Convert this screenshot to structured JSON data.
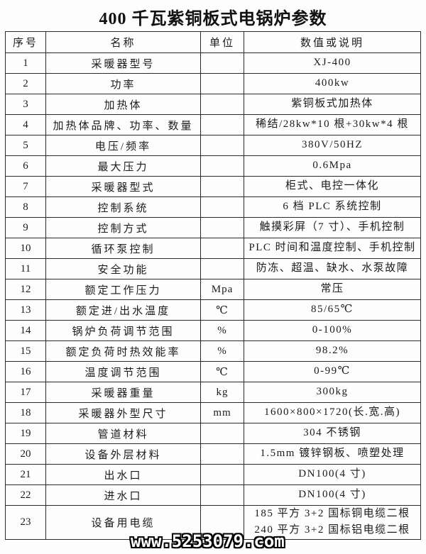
{
  "page": {
    "title": "400 千瓦紫铜板式电锅炉参数",
    "watermark": "www.5253079.com"
  },
  "colors": {
    "background": "#fdfdfd",
    "border": "#2a2a2a",
    "text": "#1b1b1b",
    "watermark_fill": "#ffffff",
    "watermark_outline": "#000000"
  },
  "table": {
    "headers": [
      "序号",
      "名称",
      "单位",
      "数值或说明"
    ],
    "rows": [
      {
        "no": "1",
        "name": "采暖器型号",
        "unit": "",
        "value": "XJ-400"
      },
      {
        "no": "2",
        "name": "功率",
        "unit": "",
        "value": "400kw"
      },
      {
        "no": "3",
        "name": "加热体",
        "unit": "",
        "value": "紫铜板式加热体"
      },
      {
        "no": "4",
        "name": "加热体品牌、功率、数量",
        "unit": "",
        "value": "稀结/28kw*10 根+30kw*4 根"
      },
      {
        "no": "5",
        "name": "电压/频率",
        "unit": "",
        "value": "380V/50HZ"
      },
      {
        "no": "6",
        "name": "最大压力",
        "unit": "",
        "value": "0.6Mpa"
      },
      {
        "no": "7",
        "name": "采暖器型式",
        "unit": "",
        "value": "柜式、电控一体化"
      },
      {
        "no": "8",
        "name": "控制系统",
        "unit": "",
        "value": "6 档 PLC 系统控制"
      },
      {
        "no": "9",
        "name": "控制方式",
        "unit": "",
        "value": "触摸彩屏（7 寸）、手机控制"
      },
      {
        "no": "10",
        "name": "循环泵控制",
        "unit": "",
        "value": "PLC 时间和温度控制、手机控制"
      },
      {
        "no": "11",
        "name": "安全功能",
        "unit": "",
        "value": "防冻、超温、缺水、水泵故障"
      },
      {
        "no": "12",
        "name": "额定工作压力",
        "unit": "Mpa",
        "value": "常压"
      },
      {
        "no": "13",
        "name": "额定进/出水温度",
        "unit": "℃",
        "value": "85/65℃"
      },
      {
        "no": "14",
        "name": "锅炉负荷调节范围",
        "unit": "%",
        "value": "0-100%"
      },
      {
        "no": "15",
        "name": "额定负荷时热效能率",
        "unit": "%",
        "value": "98.2%"
      },
      {
        "no": "16",
        "name": "温度调节范围",
        "unit": "℃",
        "value": "0-99℃"
      },
      {
        "no": "17",
        "name": "采暖器重量",
        "unit": "kg",
        "value": "300kg"
      },
      {
        "no": "18",
        "name": "采暖器外型尺寸",
        "unit": "mm",
        "value": "1600×800×1720(长.宽.高)"
      },
      {
        "no": "19",
        "name": "管道材料",
        "unit": "",
        "value": "304 不锈钢"
      },
      {
        "no": "20",
        "name": "设备外层材料",
        "unit": "",
        "value": "1.5mm 镀锌钢板、喷塑处理"
      },
      {
        "no": "21",
        "name": "出水口",
        "unit": "",
        "value": "DN100(4 寸)"
      },
      {
        "no": "22",
        "name": "进水口",
        "unit": "",
        "value": "DN100(4 寸)"
      },
      {
        "no": "23",
        "name": "设备用电缆",
        "unit": "",
        "value": "185 平方 3+2 国标铜电缆二根\n240 平方 3+2 国标铝电缆二根"
      }
    ]
  }
}
